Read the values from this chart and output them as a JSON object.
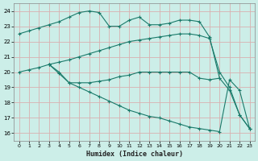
{
  "xlabel": "Humidex (Indice chaleur)",
  "bg_color": "#cceee8",
  "grid_color": "#d8b0b0",
  "line_color": "#1a7a6a",
  "xlim": [
    -0.5,
    23.5
  ],
  "ylim": [
    15.5,
    24.5
  ],
  "xticks": [
    0,
    1,
    2,
    3,
    4,
    5,
    6,
    7,
    8,
    9,
    10,
    11,
    12,
    13,
    14,
    15,
    16,
    17,
    18,
    19,
    20,
    21,
    22,
    23
  ],
  "yticks": [
    16,
    17,
    18,
    19,
    20,
    21,
    22,
    23,
    24
  ],
  "line1_x": [
    0,
    1,
    2,
    3,
    4,
    5,
    6,
    7,
    8,
    9,
    10,
    11,
    12,
    13,
    14,
    15,
    16,
    17,
    18,
    19,
    20,
    21,
    22,
    23
  ],
  "line1_y": [
    22.5,
    22.7,
    22.9,
    23.1,
    23.3,
    23.6,
    23.9,
    24.0,
    23.9,
    23.0,
    23.0,
    23.4,
    23.6,
    23.1,
    23.1,
    23.2,
    23.4,
    23.4,
    23.3,
    22.3,
    19.6,
    18.8,
    17.2,
    16.3
  ],
  "line2_x": [
    0,
    1,
    2,
    3,
    4,
    5,
    6,
    7,
    8,
    9,
    10,
    11,
    12,
    13,
    14,
    15,
    16,
    17,
    18,
    19,
    20,
    21,
    22,
    23
  ],
  "line2_y": [
    20.0,
    20.15,
    20.3,
    20.5,
    20.65,
    20.8,
    21.0,
    21.2,
    21.4,
    21.6,
    21.8,
    22.0,
    22.1,
    22.2,
    22.3,
    22.4,
    22.5,
    22.5,
    22.4,
    22.2,
    20.0,
    19.0,
    17.2,
    16.3
  ],
  "line3_x": [
    3,
    4,
    5,
    6,
    7,
    8,
    9,
    10,
    11,
    12,
    13,
    14,
    15,
    16,
    17,
    18,
    19,
    20
  ],
  "line3_y": [
    20.5,
    20.0,
    19.3,
    19.3,
    19.3,
    19.4,
    19.5,
    19.7,
    19.8,
    20.0,
    20.0,
    20.0,
    20.0,
    20.0,
    20.0,
    19.6,
    19.5,
    19.6
  ],
  "line4_x": [
    3,
    4,
    5,
    6,
    7,
    8,
    9,
    10,
    11,
    12,
    13,
    14,
    15,
    16,
    17,
    18,
    19,
    20,
    21,
    22,
    23
  ],
  "line4_y": [
    20.5,
    19.9,
    19.3,
    19.0,
    18.7,
    18.4,
    18.1,
    17.8,
    17.5,
    17.3,
    17.1,
    17.0,
    16.8,
    16.6,
    16.4,
    16.3,
    16.2,
    16.1,
    19.5,
    18.8,
    16.3
  ]
}
